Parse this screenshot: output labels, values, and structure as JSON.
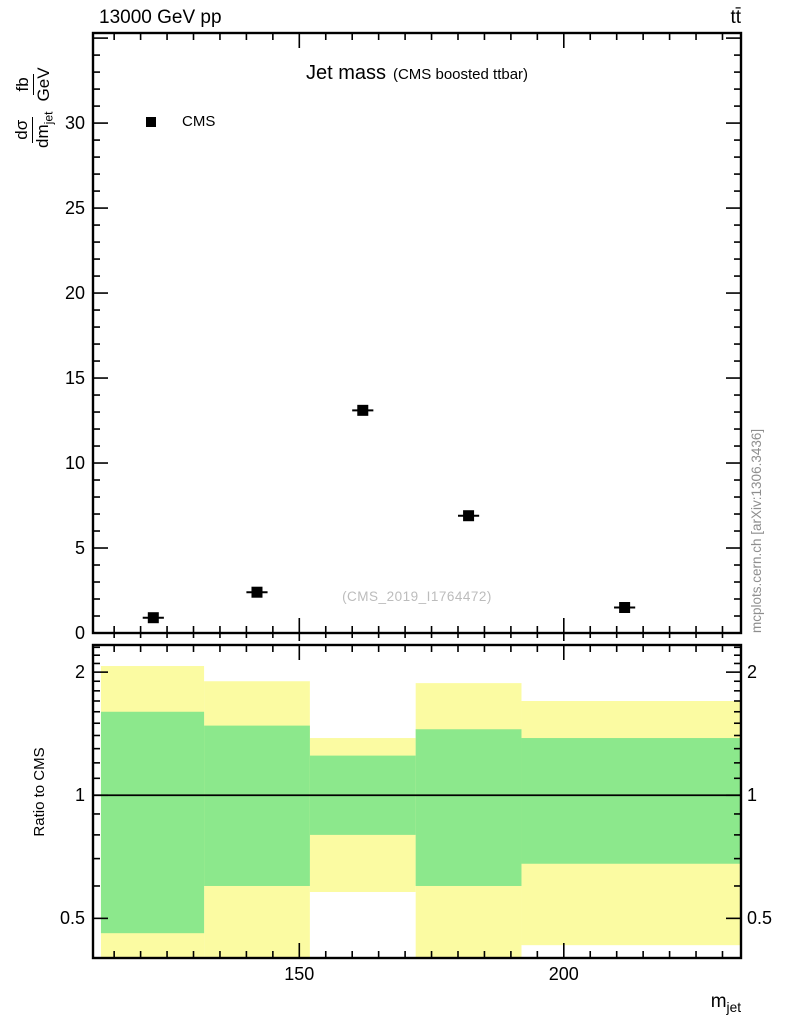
{
  "header": {
    "left": "13000 GeV pp",
    "right": "tt̄"
  },
  "plot": {
    "title": "Jet mass",
    "subtitle": "(CMS boosted ttbar)",
    "watermark": "(CMS_2019_I1764472)",
    "side_note": "mcplots.cern.ch [arXiv:1306.3436]",
    "legend": [
      {
        "label": "CMS",
        "marker": "filled-square",
        "color": "#000000"
      }
    ],
    "y_label": {
      "num1": "dσ",
      "den1": "dm",
      "den1_sub": "jet",
      "num2": "fb",
      "den2": "GeV"
    },
    "ratio_label": "Ratio to CMS",
    "x_label": {
      "base": "m",
      "sub": "jet"
    }
  },
  "colors": {
    "outer_band": "#fbfba2",
    "inner_band": "#8ce88c",
    "marker": "#000000",
    "frame": "#000000",
    "watermark_text": "#bcbcbc",
    "side_note_text": "#8e8e8e"
  },
  "chart_data": [
    {
      "type": "scatter",
      "panel": "main",
      "title": "Jet mass (CMS boosted ttbar)",
      "xlabel": "m_jet [GeV]",
      "ylabel": "dsigma/dm_jet [fb/GeV]",
      "xlim": [
        111,
        233.5
      ],
      "ylim": [
        0,
        35.3
      ],
      "x_major_ticks": [
        150,
        200
      ],
      "x_minor_tick_step": 5,
      "y_major_ticks": [
        0,
        5,
        10,
        15,
        20,
        25,
        30
      ],
      "y_minor_tick_step": 1,
      "grid": false,
      "legend_position": "top-left",
      "series": [
        {
          "name": "CMS",
          "marker": "filled-square",
          "color": "#000000",
          "xerr": 2.0,
          "points": [
            {
              "x": 122.4,
              "y": 0.9
            },
            {
              "x": 142.0,
              "y": 2.4
            },
            {
              "x": 162.0,
              "y": 13.1
            },
            {
              "x": 182.0,
              "y": 6.9
            },
            {
              "x": 211.5,
              "y": 1.5
            }
          ]
        }
      ]
    },
    {
      "type": "ratio-bands",
      "panel": "ratio",
      "ylabel": "Ratio to CMS",
      "yscale": "log",
      "ylim": [
        0.4,
        2.33
      ],
      "y_major_ticks": [
        0.5,
        1,
        2
      ],
      "y_major_tick_labels": [
        "0.5",
        "1",
        "2"
      ],
      "y_minor_ticks": [
        0.4,
        0.6,
        0.7,
        0.8,
        0.9,
        1.1,
        1.2,
        1.3,
        1.4,
        1.5,
        1.6,
        1.7,
        1.8,
        1.9,
        2.1,
        2.2,
        2.3
      ],
      "reference_line": 1,
      "bands": [
        {
          "xlow": 112.5,
          "xhigh": 132.0,
          "outer_low": 0.36,
          "outer_high": 2.07,
          "inner_low": 0.46,
          "inner_high": 1.6
        },
        {
          "xlow": 132.0,
          "xhigh": 152.0,
          "outer_low": 0.36,
          "outer_high": 1.9,
          "inner_low": 0.6,
          "inner_high": 1.48
        },
        {
          "xlow": 152.0,
          "xhigh": 172.0,
          "outer_low": 0.58,
          "outer_high": 1.38,
          "inner_low": 0.8,
          "inner_high": 1.25
        },
        {
          "xlow": 172.0,
          "xhigh": 192.0,
          "outer_low": 0.36,
          "outer_high": 1.88,
          "inner_low": 0.6,
          "inner_high": 1.45
        },
        {
          "xlow": 192.0,
          "xhigh": 233.5,
          "outer_low": 0.43,
          "outer_high": 1.7,
          "inner_low": 0.68,
          "inner_high": 1.38
        }
      ]
    }
  ]
}
